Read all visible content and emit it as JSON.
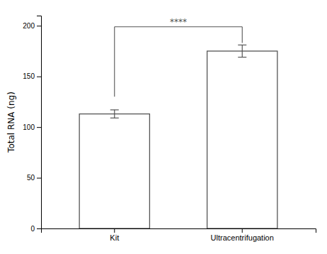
{
  "chart_data": {
    "type": "bar",
    "categories": [
      "Kit",
      "Ultracentrifugation"
    ],
    "values": [
      113,
      175
    ],
    "errors": [
      4,
      6
    ],
    "color": "#ffffff",
    "ylabel": "Total RNA (ng)",
    "ylim": [
      0,
      210
    ],
    "yticks": [
      0,
      50,
      100,
      150,
      200
    ],
    "grid": false,
    "significance": {
      "text": "****",
      "between": [
        "Kit",
        "Ultracentrifugation"
      ],
      "y": 199,
      "drops": [
        130,
        183
      ]
    }
  }
}
